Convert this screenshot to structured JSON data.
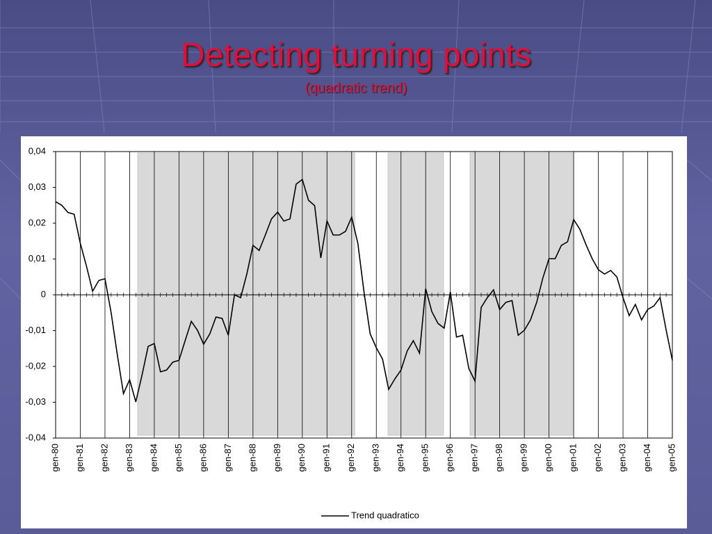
{
  "slide": {
    "title": "Detecting turning points",
    "subtitle": "(quadratic trend)"
  },
  "chart_data": {
    "type": "line",
    "categories": [
      "gen-80",
      null,
      null,
      null,
      "gen-81",
      null,
      null,
      null,
      "gen-82",
      null,
      null,
      null,
      "gen-83",
      null,
      null,
      null,
      "gen-84",
      null,
      null,
      null,
      "gen-85",
      null,
      null,
      null,
      "gen-86",
      null,
      null,
      null,
      "gen-87",
      null,
      null,
      null,
      "gen-88",
      null,
      null,
      null,
      "gen-89",
      null,
      null,
      null,
      "gen-90",
      null,
      null,
      null,
      "gen-91",
      null,
      null,
      null,
      "gen-92",
      null,
      null,
      null,
      "gen-93",
      null,
      null,
      null,
      "gen-94",
      null,
      null,
      null,
      "gen-95",
      null,
      null,
      null,
      "gen-96",
      null,
      null,
      null,
      "gen-97",
      null,
      null,
      null,
      "gen-98",
      null,
      null,
      null,
      "gen-99",
      null,
      null,
      null,
      "gen-00",
      null,
      null,
      null,
      "gen-01",
      null,
      null,
      null,
      "gen-02",
      null,
      null,
      null,
      "gen-03",
      null,
      null,
      null,
      "gen-04",
      null,
      null,
      null,
      "gen-05"
    ],
    "series": [
      {
        "name": "Trend quadratico",
        "color": "#000000",
        "values": [
          0.026,
          0.025,
          0.023,
          0.0225,
          0.0144,
          0.008,
          0.001,
          0.004,
          0.0045,
          -0.005,
          -0.0167,
          -0.0276,
          -0.0237,
          -0.0299,
          -0.0225,
          -0.0144,
          -0.0136,
          -0.0215,
          -0.021,
          -0.0188,
          -0.0183,
          -0.0128,
          -0.0074,
          -0.0099,
          -0.0138,
          -0.0109,
          -0.0062,
          -0.0066,
          -0.0113,
          0.0,
          -0.0008,
          0.0058,
          0.0138,
          0.0124,
          0.0167,
          0.0212,
          0.0231,
          0.0206,
          0.0212,
          0.0309,
          0.0322,
          0.0264,
          0.0249,
          0.0103,
          0.0206,
          0.0167,
          0.0167,
          0.0177,
          0.0217,
          0.0144,
          0.0008,
          -0.0109,
          -0.0148,
          -0.0179,
          -0.0264,
          -0.0235,
          -0.021,
          -0.0157,
          -0.0128,
          -0.0163,
          0.0017,
          -0.0047,
          -0.008,
          -0.0093,
          0.0008,
          -0.0118,
          -0.0113,
          -0.0206,
          -0.0241,
          -0.0035,
          -0.0008,
          0.0014,
          -0.0041,
          -0.0021,
          -0.0016,
          -0.0113,
          -0.0099,
          -0.007,
          -0.0021,
          0.0047,
          0.0101,
          0.0101,
          0.0138,
          0.0148,
          0.021,
          0.0183,
          0.014,
          0.0101,
          0.007,
          0.0058,
          0.0068,
          0.005,
          -0.0008,
          -0.0058,
          -0.0027,
          -0.007,
          -0.0041,
          -0.0031,
          -0.0008,
          -0.0099,
          -0.0183
        ]
      }
    ],
    "shaded_periods": [
      [
        13.3,
        48.5
      ],
      [
        53.9,
        62.9
      ],
      [
        67.2,
        83.9
      ]
    ],
    "shade_color": "#d9d9d9",
    "ylim": [
      -0.04,
      0.04
    ],
    "yticks": [
      {
        "value": -0.04,
        "label": "-0,04"
      },
      {
        "value": -0.03,
        "label": "-0,03"
      },
      {
        "value": -0.02,
        "label": "-0,02"
      },
      {
        "value": -0.01,
        "label": "-0,01"
      },
      0,
      {
        "value": 0.01,
        "label": "0,01"
      },
      {
        "value": 0.02,
        "label": "0,02"
      },
      {
        "value": 0.03,
        "label": "0,03"
      },
      {
        "value": 0.04,
        "label": "0,04"
      }
    ],
    "grid": "x",
    "legend": "bottom"
  }
}
